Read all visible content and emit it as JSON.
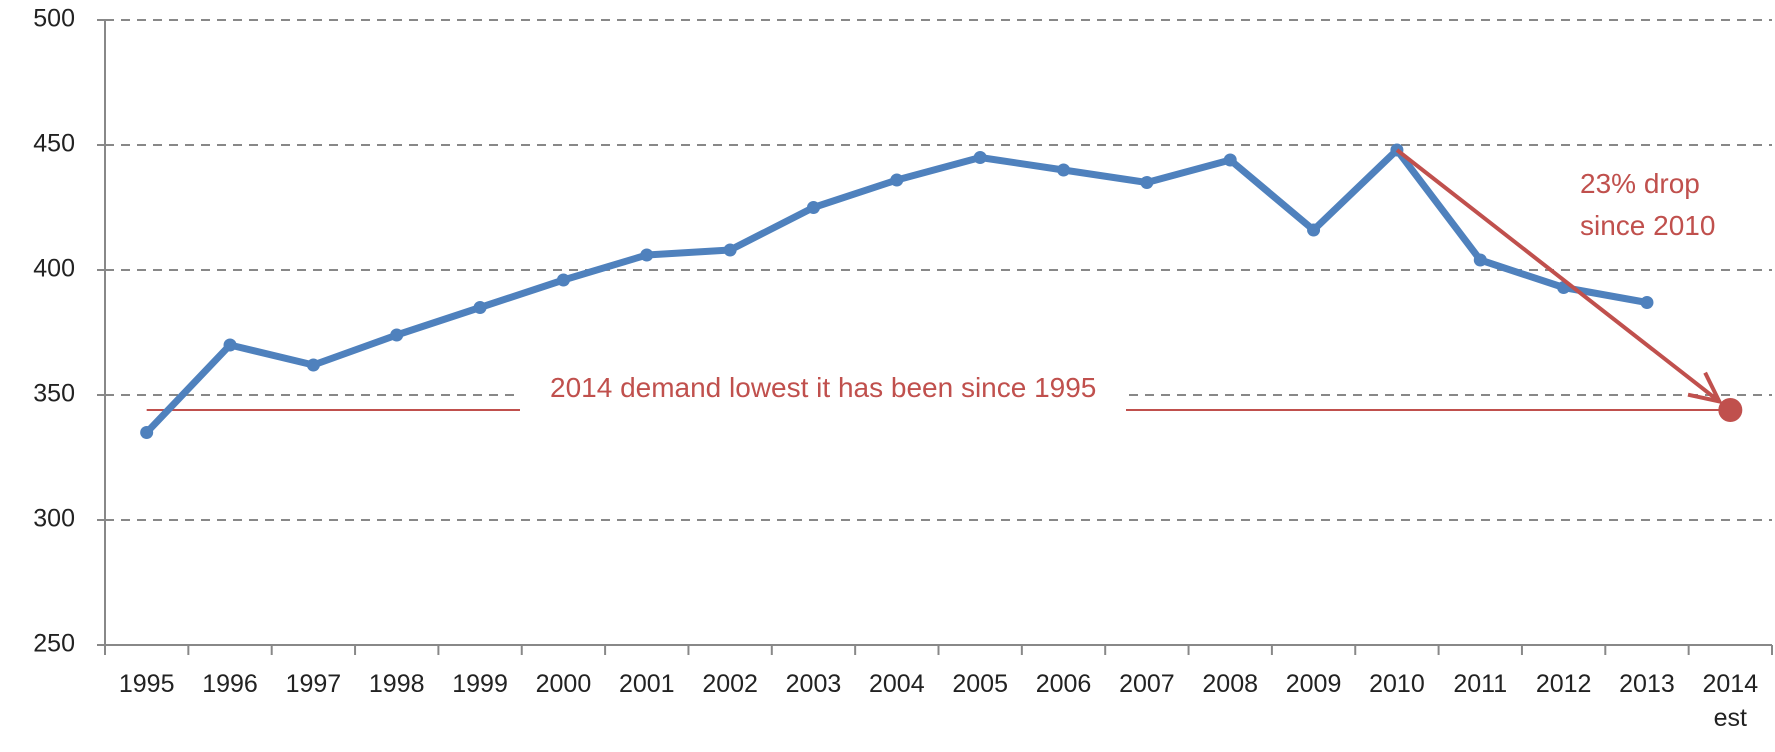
{
  "chart_data": {
    "type": "line",
    "categories": [
      "1995",
      "1996",
      "1997",
      "1998",
      "1999",
      "2000",
      "2001",
      "2002",
      "2003",
      "2004",
      "2005",
      "2006",
      "2007",
      "2008",
      "2009",
      "2010",
      "2011",
      "2012",
      "2013",
      "2014\nest"
    ],
    "series": [
      {
        "color": "#4f81bd",
        "values": [
          335,
          370,
          362,
          374,
          385,
          396,
          406,
          408,
          425,
          436,
          445,
          440,
          435,
          444,
          416,
          448,
          404,
          393,
          387,
          null
        ]
      },
      {
        "color": "#c0504d",
        "values": [
          null,
          null,
          null,
          null,
          null,
          null,
          null,
          null,
          null,
          null,
          null,
          null,
          null,
          null,
          null,
          null,
          null,
          null,
          null,
          344
        ]
      }
    ],
    "annotations": [
      "2014 demand lowest it has been since 1995",
      "23% drop\nsince 2010"
    ],
    "ylim": [
      250,
      500
    ],
    "yticks": [
      250,
      300,
      350,
      400,
      450,
      500
    ],
    "grid": true
  }
}
